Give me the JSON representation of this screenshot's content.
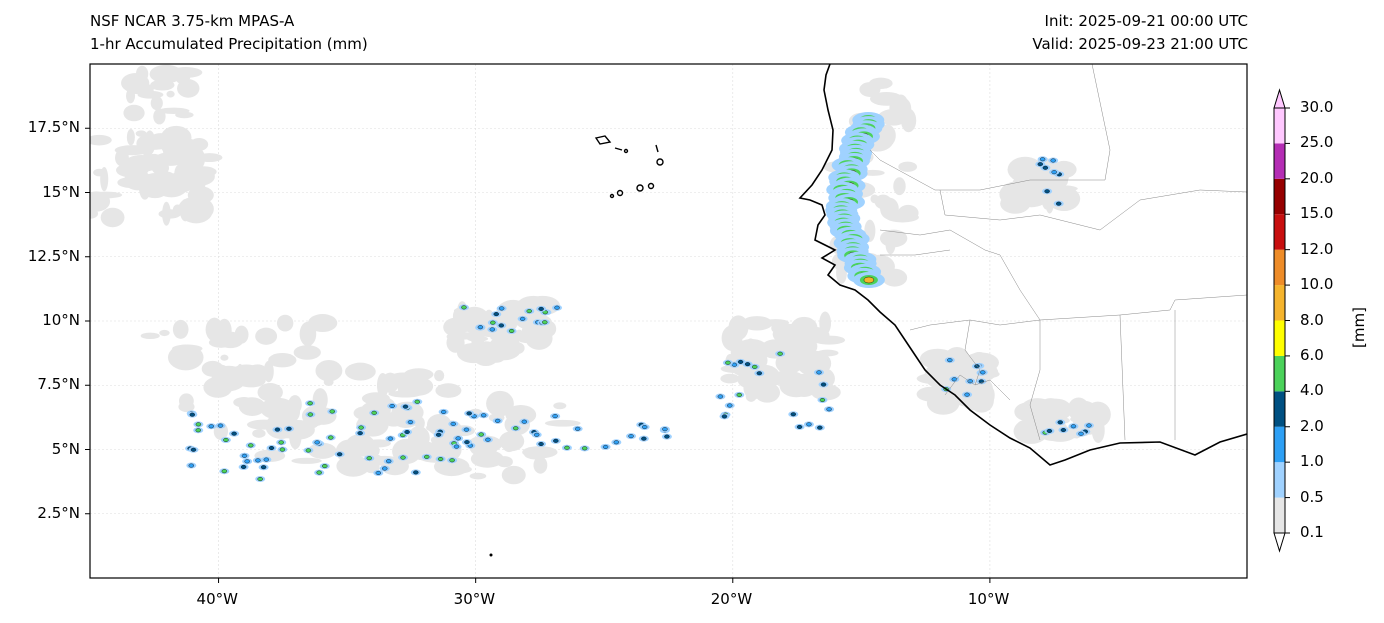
{
  "header": {
    "model": "NSF NCAR 3.75-km MPAS-A",
    "field": "1-hr Accumulated Precipitation (mm)",
    "init": "Init: 2025-09-21 00:00 UTC",
    "valid": "Valid: 2025-09-23 21:00 UTC"
  },
  "map": {
    "lon_range": [
      -45,
      0
    ],
    "lat_range": [
      0,
      20
    ],
    "lon_ticks": [
      {
        "value": -40,
        "label": "40°W"
      },
      {
        "value": -30,
        "label": "30°W"
      },
      {
        "value": -20,
        "label": "20°W"
      },
      {
        "value": -10,
        "label": "10°W"
      }
    ],
    "lat_ticks": [
      {
        "value": 17.5,
        "label": "17.5°N"
      },
      {
        "value": 15,
        "label": "15°N"
      },
      {
        "value": 12.5,
        "label": "12.5°N"
      },
      {
        "value": 10,
        "label": "10°N"
      },
      {
        "value": 7.5,
        "label": "7.5°N"
      },
      {
        "value": 5,
        "label": "5°N"
      },
      {
        "value": 2.5,
        "label": "2.5°N"
      }
    ]
  },
  "colorbar": {
    "unit_label": "[mm]",
    "levels": [
      "0.1",
      "0.5",
      "1.0",
      "2.0",
      "4.0",
      "6.0",
      "8.0",
      "10.0",
      "12.0",
      "15.0",
      "20.0",
      "25.0",
      "30.0"
    ],
    "colors": [
      "#e6e6e6",
      "#a0d2ff",
      "#2ea0f5",
      "#005082",
      "#4bd25a",
      "#ffff00",
      "#f5b42d",
      "#ee8c28",
      "#c80f0f",
      "#960000",
      "#b42db4",
      "#ffc8ff"
    ],
    "under_color": "#ffffff",
    "over_color": "#ffc8ff"
  }
}
